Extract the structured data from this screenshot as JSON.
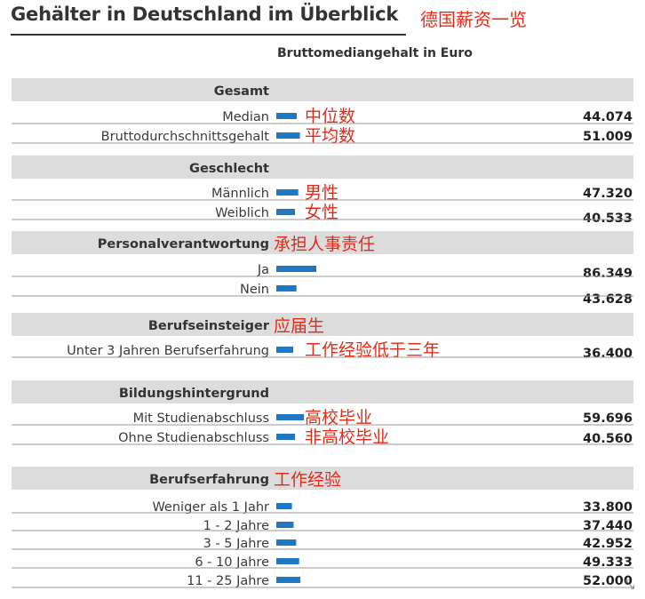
{
  "title": "Gehälter in Deutschland im Überblick",
  "title_annotation": "德国薪资一览",
  "subtitle": "Bruttomediangehalt in Euro",
  "colors": {
    "bar": "#1f78c1",
    "band": "#dcdcdc",
    "annotation": "#e32b1a",
    "text": "#333333"
  },
  "chart_data": {
    "type": "bar",
    "orientation": "horizontal",
    "title": "Gehälter in Deutschland im Überblick",
    "subtitle": "Bruttomediangehalt in Euro",
    "groups": [
      {
        "name": "Gesamt",
        "annotation": "",
        "rows": [
          {
            "label": "Median",
            "value": 44074,
            "value_label": "44.074",
            "annotation": "中位数"
          },
          {
            "label": "Bruttodurchschnittsgehalt",
            "value": 51009,
            "value_label": "51.009",
            "annotation": "平均数"
          }
        ]
      },
      {
        "name": "Geschlecht",
        "annotation": "",
        "rows": [
          {
            "label": "Männlich",
            "value": 47320,
            "value_label": "47.320",
            "annotation": "男性"
          },
          {
            "label": "Weiblich",
            "value": 40533,
            "value_label": "40.533",
            "annotation": "女性"
          }
        ]
      },
      {
        "name": "Personalverantwortung",
        "annotation": "承担人事责任",
        "rows": [
          {
            "label": "Ja",
            "value": 86349,
            "value_label": "86.349",
            "annotation": ""
          },
          {
            "label": "Nein",
            "value": 43628,
            "value_label": "43.628",
            "annotation": ""
          }
        ]
      },
      {
        "name": "Berufseinsteiger",
        "annotation": "应届生",
        "rows": [
          {
            "label": "Unter 3 Jahren Berufserfahrung",
            "value": 36400,
            "value_label": "36.400",
            "annotation": "工作经验低于三年"
          }
        ]
      },
      {
        "name": "Bildungshintergrund",
        "annotation": "",
        "rows": [
          {
            "label": "Mit Studienabschluss",
            "value": 59696,
            "value_label": "59.696",
            "annotation": "高校毕业"
          },
          {
            "label": "Ohne Studienabschluss",
            "value": 40560,
            "value_label": "40.560",
            "annotation": "非高校毕业"
          }
        ]
      },
      {
        "name": "Berufserfahrung",
        "annotation": "工作经验",
        "rows": [
          {
            "label": "Weniger als 1 Jahr",
            "value": 33800,
            "value_label": "33.800",
            "annotation": ""
          },
          {
            "label": "1 - 2 Jahre",
            "value": 37440,
            "value_label": "37.440",
            "annotation": ""
          },
          {
            "label": "3 - 5 Jahre",
            "value": 42952,
            "value_label": "42.952",
            "annotation": ""
          },
          {
            "label": "6 - 10 Jahre",
            "value": 49333,
            "value_label": "49.333",
            "annotation": ""
          },
          {
            "label": "11 - 25 Jahre",
            "value": 52000,
            "value_label": "52.000",
            "annotation": ""
          }
        ]
      }
    ]
  }
}
